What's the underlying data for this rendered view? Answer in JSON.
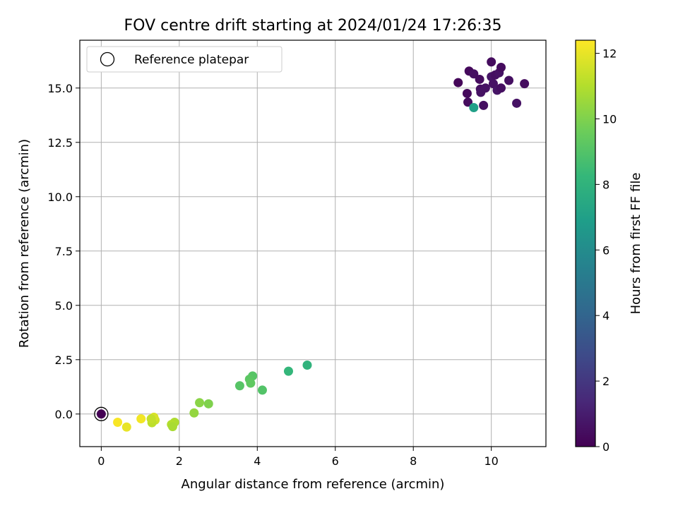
{
  "chart_data": {
    "type": "scatter",
    "title": "FOV centre drift starting at 2024/01/24 17:26:35",
    "xlabel": "Angular distance from reference (arcmin)",
    "ylabel": "Rotation from reference (arcmin)",
    "colorbar_label": "Hours from first FF file",
    "xlim": [
      -0.55,
      11.4
    ],
    "ylim": [
      -1.5,
      17.2
    ],
    "xticks": [
      0,
      2,
      4,
      6,
      8,
      10
    ],
    "xtick_labels": [
      "0",
      "2",
      "4",
      "6",
      "8",
      "10"
    ],
    "yticks": [
      0.0,
      2.5,
      5.0,
      7.5,
      10.0,
      12.5,
      15.0
    ],
    "ytick_labels": [
      "0.0",
      "2.5",
      "5.0",
      "7.5",
      "10.0",
      "12.5",
      "15.0"
    ],
    "color_range": [
      0,
      12.4
    ],
    "cbar_ticks": [
      0,
      2,
      4,
      6,
      8,
      10,
      12
    ],
    "cbar_tick_labels": [
      "0",
      "2",
      "4",
      "6",
      "8",
      "10",
      "12"
    ],
    "colormap": "viridis",
    "grid": true,
    "legend": {
      "position": "top-left",
      "entries": [
        "Reference platepar"
      ]
    },
    "reference_point": {
      "x": 0,
      "y": 0,
      "label": "Reference platepar"
    },
    "points": [
      {
        "x": 9.15,
        "y": 15.25,
        "c": 0.2
      },
      {
        "x": 9.38,
        "y": 14.75,
        "c": 0.3
      },
      {
        "x": 9.4,
        "y": 14.35,
        "c": 0.4
      },
      {
        "x": 9.43,
        "y": 15.78,
        "c": 0.3
      },
      {
        "x": 9.55,
        "y": 15.65,
        "c": 0.5
      },
      {
        "x": 9.7,
        "y": 15.4,
        "c": 0.4
      },
      {
        "x": 9.72,
        "y": 14.95,
        "c": 0.5
      },
      {
        "x": 9.73,
        "y": 14.8,
        "c": 0.6
      },
      {
        "x": 9.8,
        "y": 14.2,
        "c": 0.5
      },
      {
        "x": 9.85,
        "y": 15.0,
        "c": 0.6
      },
      {
        "x": 10.0,
        "y": 16.2,
        "c": 0.4
      },
      {
        "x": 10.0,
        "y": 15.52,
        "c": 0.7
      },
      {
        "x": 10.05,
        "y": 15.2,
        "c": 0.6
      },
      {
        "x": 10.1,
        "y": 15.6,
        "c": 0.5
      },
      {
        "x": 10.15,
        "y": 14.9,
        "c": 0.7
      },
      {
        "x": 10.2,
        "y": 15.7,
        "c": 0.6
      },
      {
        "x": 10.25,
        "y": 15.0,
        "c": 0.5
      },
      {
        "x": 10.25,
        "y": 15.95,
        "c": 0.4
      },
      {
        "x": 10.45,
        "y": 15.35,
        "c": 0.5
      },
      {
        "x": 10.65,
        "y": 14.3,
        "c": 0.6
      },
      {
        "x": 10.85,
        "y": 15.2,
        "c": 0.4
      },
      {
        "x": 9.55,
        "y": 14.1,
        "c": 7.0
      },
      {
        "x": 5.28,
        "y": 2.25,
        "c": 8.0
      },
      {
        "x": 4.8,
        "y": 1.97,
        "c": 8.2
      },
      {
        "x": 3.88,
        "y": 1.75,
        "c": 9.1
      },
      {
        "x": 3.8,
        "y": 1.6,
        "c": 9.2
      },
      {
        "x": 3.83,
        "y": 1.42,
        "c": 9.3
      },
      {
        "x": 3.55,
        "y": 1.3,
        "c": 9.1
      },
      {
        "x": 4.13,
        "y": 1.1,
        "c": 9.0
      },
      {
        "x": 2.75,
        "y": 0.47,
        "c": 10.0
      },
      {
        "x": 2.52,
        "y": 0.52,
        "c": 10.2
      },
      {
        "x": 2.38,
        "y": 0.05,
        "c": 10.4
      },
      {
        "x": 1.88,
        "y": -0.38,
        "c": 10.9
      },
      {
        "x": 1.8,
        "y": -0.48,
        "c": 11.0
      },
      {
        "x": 1.83,
        "y": -0.58,
        "c": 10.8
      },
      {
        "x": 1.38,
        "y": -0.28,
        "c": 11.5
      },
      {
        "x": 1.35,
        "y": -0.15,
        "c": 11.7
      },
      {
        "x": 1.3,
        "y": -0.4,
        "c": 11.2
      },
      {
        "x": 1.28,
        "y": -0.22,
        "c": 11.3
      },
      {
        "x": 1.02,
        "y": -0.22,
        "c": 12.2
      },
      {
        "x": 0.65,
        "y": -0.6,
        "c": 12.0
      },
      {
        "x": 0.42,
        "y": -0.38,
        "c": 12.3
      },
      {
        "x": 0.0,
        "y": 0.0,
        "c": 0.0
      }
    ]
  }
}
